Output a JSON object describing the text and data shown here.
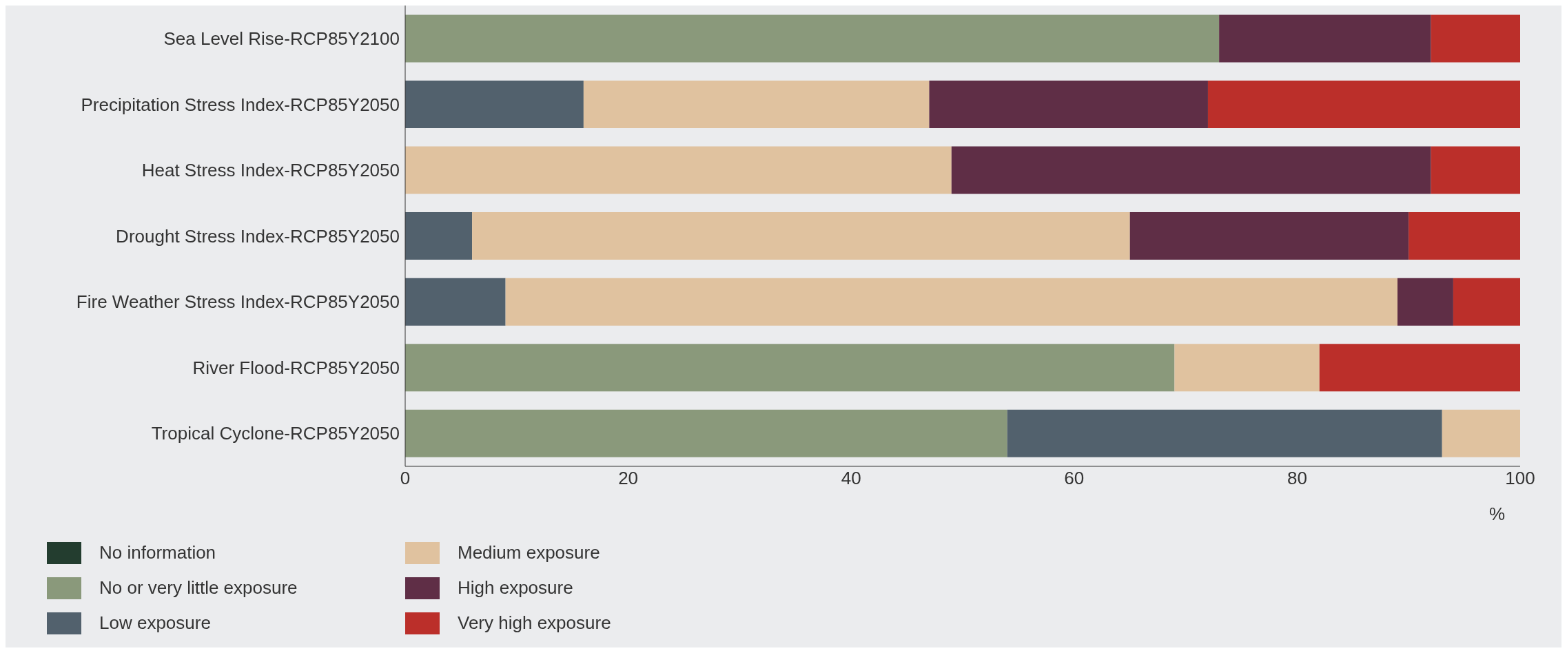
{
  "chart_data": {
    "type": "bar",
    "orientation": "horizontal",
    "stacked": true,
    "xlabel": "%",
    "categories": [
      "Sea Level Rise-RCP85Y2100",
      "Precipitation Stress Index-RCP85Y2050",
      "Heat Stress Index-RCP85Y2050",
      "Drought Stress Index-RCP85Y2050",
      "Fire Weather Stress Index-RCP85Y2050",
      "River Flood-RCP85Y2050",
      "Tropical Cyclone-RCP85Y2050"
    ],
    "series": [
      {
        "name": "No information",
        "color": "#233d2f",
        "values": [
          0,
          0,
          0,
          0,
          0,
          0,
          0
        ]
      },
      {
        "name": "No or very little exposure",
        "color": "#8a997b",
        "values": [
          73,
          0,
          0,
          0,
          0,
          69,
          54
        ]
      },
      {
        "name": "Low exposure",
        "color": "#52616d",
        "values": [
          0,
          16,
          0,
          6,
          9,
          0,
          39
        ]
      },
      {
        "name": "Medium exposure",
        "color": "#e0c29f",
        "values": [
          0,
          31,
          49,
          59,
          80,
          13,
          7
        ]
      },
      {
        "name": "High exposure",
        "color": "#5f2e46",
        "values": [
          19,
          25,
          43,
          25,
          5,
          0,
          0
        ]
      },
      {
        "name": "Very high exposure",
        "color": "#bb2f2a",
        "values": [
          8,
          28,
          8,
          10,
          6,
          18,
          0
        ]
      }
    ],
    "xlim": [
      0,
      100
    ],
    "xticks": [
      0,
      20,
      40,
      60,
      80,
      100
    ],
    "grid": false,
    "legend": "bottom"
  }
}
